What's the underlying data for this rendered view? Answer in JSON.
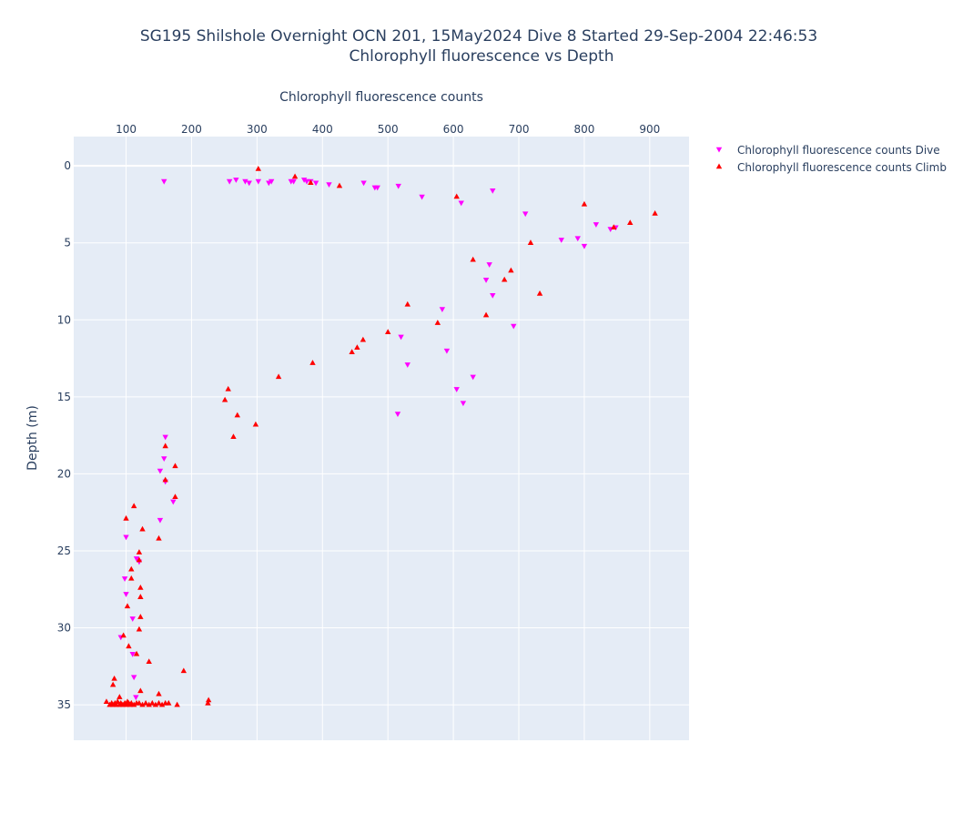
{
  "chart_data": {
    "type": "scatter",
    "title_lines": [
      "SG195 Shilshole Overnight OCN 201, 15May2024 Dive 8 Started 29-Sep-2004 22:46:53",
      "Chlorophyll fluorescence vs Depth"
    ],
    "xlabel": "Chlorophyll fluorescence counts",
    "ylabel": "Depth (m)",
    "xlim": [
      20,
      960
    ],
    "ylim": [
      37.3,
      -1.9
    ],
    "x_axis_side": "top",
    "y_reversed": true,
    "grid": true,
    "legend_position": "right",
    "x_ticks": [
      100,
      200,
      300,
      400,
      500,
      600,
      700,
      800,
      900
    ],
    "x_tick_labels": [
      "100",
      "200",
      "300",
      "400",
      "500",
      "600",
      "700",
      "800",
      "900"
    ],
    "y_ticks": [
      0,
      5,
      10,
      15,
      20,
      25,
      30,
      35
    ],
    "y_tick_labels": [
      "0",
      "5",
      "10",
      "15",
      "20",
      "25",
      "30",
      "35"
    ],
    "series": [
      {
        "name": "Chlorophyll fluorescence counts Dive",
        "color": "#ff00ff",
        "marker": "triangle-down",
        "x": [
          158,
          258,
          268,
          282,
          288,
          302,
          318,
          322,
          352,
          356,
          372,
          376,
          382,
          390,
          410,
          463,
          480,
          484,
          516,
          552,
          612,
          660,
          710,
          765,
          790,
          800,
          818,
          840,
          848,
          655,
          650,
          660,
          583,
          692,
          520,
          590,
          530,
          630,
          605,
          615,
          515,
          160,
          158,
          152,
          160,
          172,
          152,
          100,
          116,
          120,
          98,
          100,
          110,
          92,
          110,
          112,
          115
        ],
        "y": [
          1.0,
          1.0,
          0.9,
          1.0,
          1.1,
          1.0,
          1.1,
          1.0,
          1.0,
          1.0,
          0.9,
          1.0,
          1.0,
          1.1,
          1.2,
          1.1,
          1.4,
          1.4,
          1.3,
          2.0,
          2.4,
          1.6,
          3.1,
          4.8,
          4.7,
          5.2,
          3.8,
          4.1,
          4.0,
          6.4,
          7.4,
          8.4,
          9.3,
          10.4,
          11.1,
          12.0,
          12.9,
          13.7,
          14.5,
          15.4,
          16.1,
          17.6,
          19.0,
          19.8,
          20.5,
          21.8,
          23.0,
          24.1,
          25.5,
          25.7,
          26.8,
          27.8,
          29.4,
          30.6,
          31.7,
          33.2,
          34.5
        ]
      },
      {
        "name": "Chlorophyll fluorescence counts Climb",
        "color": "#ff0000",
        "marker": "triangle-up",
        "x": [
          302,
          358,
          382,
          426,
          605,
          800,
          908,
          870,
          845,
          718,
          630,
          688,
          678,
          732,
          530,
          650,
          576,
          500,
          462,
          453,
          445,
          385,
          333,
          256,
          251,
          270,
          298,
          264,
          160,
          175,
          160,
          175,
          112,
          100,
          125,
          150,
          120,
          120,
          108,
          108,
          122,
          122,
          102,
          122,
          120,
          96,
          104,
          116,
          135,
          188,
          82,
          80,
          122,
          150,
          90,
          226,
          225,
          70,
          75,
          78,
          80,
          83,
          85,
          87,
          90,
          92,
          95,
          98,
          100,
          102,
          104,
          106,
          108,
          112,
          116,
          120,
          125,
          130,
          135,
          140,
          145,
          150,
          155,
          160,
          165,
          178
        ],
        "y": [
          0.2,
          0.7,
          1.1,
          1.3,
          2.0,
          2.5,
          3.1,
          3.7,
          4.0,
          5.0,
          6.1,
          6.8,
          7.4,
          8.3,
          9.0,
          9.7,
          10.2,
          10.8,
          11.3,
          11.8,
          12.1,
          12.8,
          13.7,
          14.5,
          15.2,
          16.2,
          16.8,
          17.6,
          18.2,
          19.5,
          20.4,
          21.5,
          22.1,
          22.9,
          23.6,
          24.2,
          25.1,
          25.6,
          26.2,
          26.8,
          27.4,
          28.0,
          28.6,
          29.3,
          30.1,
          30.5,
          31.2,
          31.7,
          32.2,
          32.8,
          33.3,
          33.7,
          34.1,
          34.3,
          34.5,
          34.7,
          34.9,
          34.8,
          35.0,
          34.9,
          35.0,
          34.9,
          35.0,
          34.8,
          35.0,
          34.9,
          35.0,
          34.9,
          35.0,
          34.8,
          34.9,
          35.0,
          34.9,
          35.0,
          34.9,
          34.9,
          35.0,
          34.9,
          35.0,
          34.9,
          35.0,
          34.9,
          35.0,
          34.9,
          34.9,
          35.0
        ]
      }
    ]
  }
}
